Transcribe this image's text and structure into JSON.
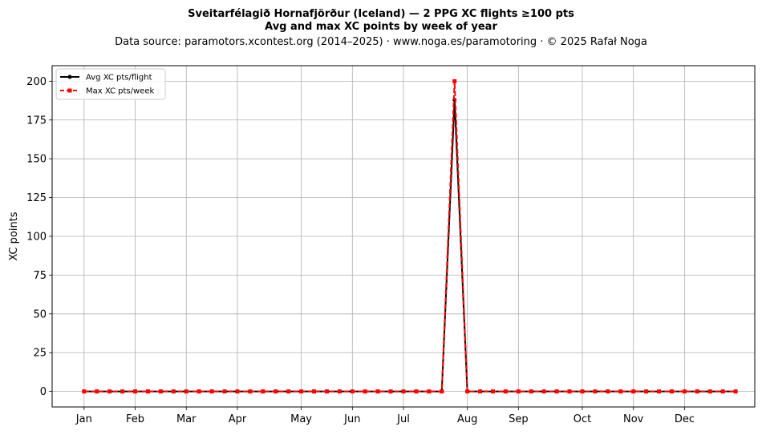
{
  "chart_data": {
    "type": "line",
    "title_line1": "Sveitarfélagið Hornafjörður (Iceland)  —  2 PPG XC flights ≥100 pts",
    "title_line2": "Avg and max XC points by week of year",
    "subtitle": "Data source: paramotors.xcontest.org (2014–2025)  ·  www.noga.es/paramotoring  ·  © 2025 Rafał Noga",
    "xlabel": "",
    "ylabel": "XC points",
    "ylim": [
      -10,
      210
    ],
    "xlim": [
      -1.5,
      53.5
    ],
    "y_ticks": [
      0,
      25,
      50,
      75,
      100,
      125,
      150,
      175,
      200
    ],
    "x_ticks": [
      {
        "label": "Jan",
        "week": 1
      },
      {
        "label": "Feb",
        "week": 5
      },
      {
        "label": "Mar",
        "week": 9
      },
      {
        "label": "Apr",
        "week": 13
      },
      {
        "label": "May",
        "week": 18
      },
      {
        "label": "Jun",
        "week": 22
      },
      {
        "label": "Jul",
        "week": 26
      },
      {
        "label": "Aug",
        "week": 31
      },
      {
        "label": "Sep",
        "week": 35
      },
      {
        "label": "Oct",
        "week": 40
      },
      {
        "label": "Nov",
        "week": 44
      },
      {
        "label": "Dec",
        "week": 48
      }
    ],
    "grid": true,
    "legend_position": "top-left",
    "weeks": [
      1,
      2,
      3,
      4,
      5,
      6,
      7,
      8,
      9,
      10,
      11,
      12,
      13,
      14,
      15,
      16,
      17,
      18,
      19,
      20,
      21,
      22,
      23,
      24,
      25,
      26,
      27,
      28,
      29,
      30,
      31,
      32,
      33,
      34,
      35,
      36,
      37,
      38,
      39,
      40,
      41,
      42,
      43,
      44,
      45,
      46,
      47,
      48,
      49,
      50,
      51,
      52
    ],
    "series": [
      {
        "name": "Avg XC pts/flight",
        "color": "#000000",
        "line_style": "solid",
        "marker": "circle",
        "values": [
          0,
          0,
          0,
          0,
          0,
          0,
          0,
          0,
          0,
          0,
          0,
          0,
          0,
          0,
          0,
          0,
          0,
          0,
          0,
          0,
          0,
          0,
          0,
          0,
          0,
          0,
          0,
          0,
          0,
          188,
          0,
          0,
          0,
          0,
          0,
          0,
          0,
          0,
          0,
          0,
          0,
          0,
          0,
          0,
          0,
          0,
          0,
          0,
          0,
          0,
          0,
          0
        ]
      },
      {
        "name": "Max XC pts/week",
        "color": "#ff0000",
        "line_style": "dashed",
        "marker": "square",
        "values": [
          0,
          0,
          0,
          0,
          0,
          0,
          0,
          0,
          0,
          0,
          0,
          0,
          0,
          0,
          0,
          0,
          0,
          0,
          0,
          0,
          0,
          0,
          0,
          0,
          0,
          0,
          0,
          0,
          0,
          200,
          0,
          0,
          0,
          0,
          0,
          0,
          0,
          0,
          0,
          0,
          0,
          0,
          0,
          0,
          0,
          0,
          0,
          0,
          0,
          0,
          0,
          0
        ]
      }
    ]
  }
}
